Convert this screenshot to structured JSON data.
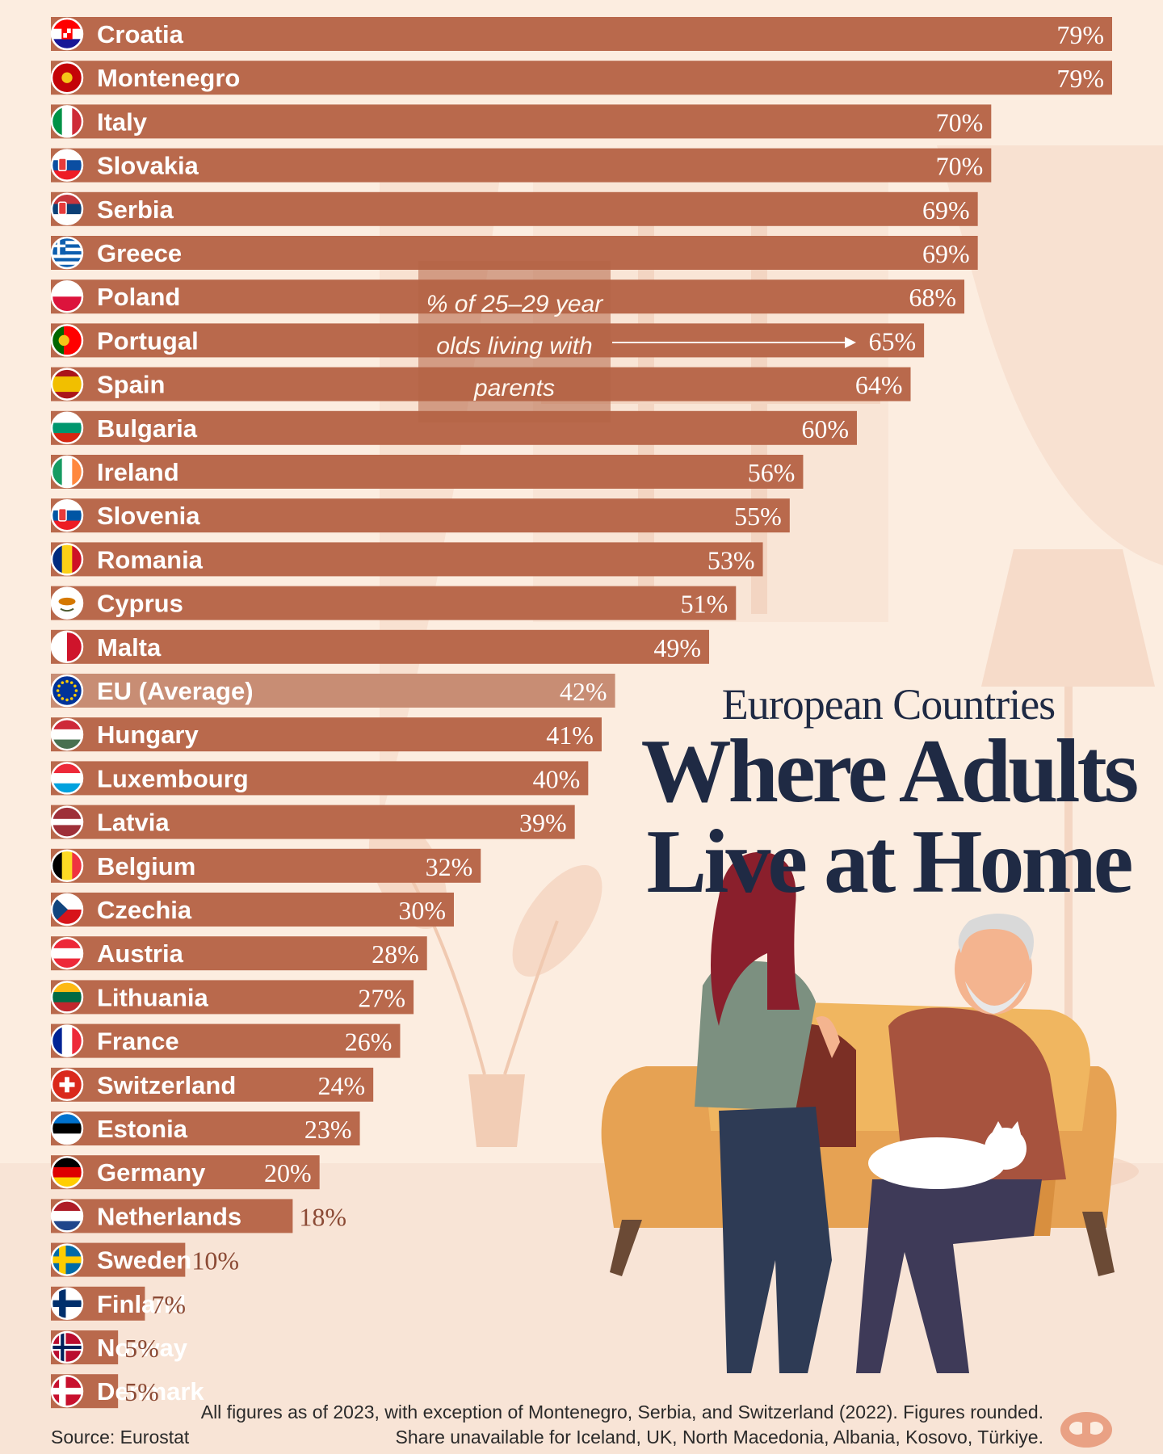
{
  "chart_data": {
    "type": "bar",
    "orientation": "horizontal",
    "title": "Where Adults Live at Home",
    "subtitle": "European Countries",
    "annotation": "% of 25–29 year olds living with parents",
    "annotation_lines": [
      "% of 25–29 year",
      "olds living with",
      "parents"
    ],
    "categories": [
      "Croatia",
      "Montenegro",
      "Italy",
      "Slovakia",
      "Serbia",
      "Greece",
      "Poland",
      "Portugal",
      "Spain",
      "Bulgaria",
      "Ireland",
      "Slovenia",
      "Romania",
      "Cyprus",
      "Malta",
      "EU (Average)",
      "Hungary",
      "Luxembourg",
      "Latvia",
      "Belgium",
      "Czechia",
      "Austria",
      "Lithuania",
      "France",
      "Switzerland",
      "Estonia",
      "Germany",
      "Netherlands",
      "Sweden",
      "Finland",
      "Norway",
      "Denmark"
    ],
    "values": [
      79,
      79,
      70,
      70,
      69,
      69,
      68,
      65,
      64,
      60,
      56,
      55,
      53,
      51,
      49,
      42,
      41,
      40,
      39,
      32,
      30,
      28,
      27,
      26,
      24,
      23,
      20,
      18,
      10,
      7,
      5,
      5
    ],
    "value_labels": [
      "79%",
      "79%",
      "70%",
      "70%",
      "69%",
      "69%",
      "68%",
      "65%",
      "64%",
      "60%",
      "56%",
      "55%",
      "53%",
      "51%",
      "49%",
      "42%",
      "41%",
      "40%",
      "39%",
      "32%",
      "30%",
      "28%",
      "27%",
      "26%",
      "24%",
      "23%",
      "20%",
      "18%",
      "10%",
      "7%",
      "5%",
      "5%"
    ],
    "highlight": "EU (Average)",
    "unit": "%",
    "xlim": [
      0,
      79
    ],
    "grid": false,
    "legend": "none"
  },
  "flags": [
    {
      "country": "Croatia",
      "type": "h",
      "colors": [
        "#ff0000",
        "#ffffff",
        "#171796"
      ],
      "emblem": "checker"
    },
    {
      "country": "Montenegro",
      "type": "solid",
      "colors": [
        "#c40308"
      ],
      "emblem": "gold-dot"
    },
    {
      "country": "Italy",
      "type": "v",
      "colors": [
        "#009246",
        "#ffffff",
        "#ce2b37"
      ]
    },
    {
      "country": "Slovakia",
      "type": "h",
      "colors": [
        "#ffffff",
        "#0b4ea2",
        "#ee1c25"
      ],
      "emblem": "shield"
    },
    {
      "country": "Serbia",
      "type": "h",
      "colors": [
        "#c6363c",
        "#0c4076",
        "#ffffff"
      ],
      "emblem": "shield"
    },
    {
      "country": "Greece",
      "type": "h",
      "colors": [
        "#0d5eaf",
        "#ffffff",
        "#0d5eaf",
        "#ffffff",
        "#0d5eaf",
        "#ffffff",
        "#0d5eaf",
        "#ffffff",
        "#0d5eaf"
      ],
      "emblem": "greek-cross"
    },
    {
      "country": "Poland",
      "type": "h",
      "colors": [
        "#ffffff",
        "#dc143c"
      ]
    },
    {
      "country": "Portugal",
      "type": "v2",
      "colors": [
        "#006600",
        "#ff0000"
      ],
      "emblem": "gold-dot"
    },
    {
      "country": "Spain",
      "type": "h",
      "colors": [
        "#aa151b",
        "#f1bf00",
        "#f1bf00",
        "#aa151b"
      ]
    },
    {
      "country": "Bulgaria",
      "type": "h",
      "colors": [
        "#ffffff",
        "#00966e",
        "#d62612"
      ]
    },
    {
      "country": "Ireland",
      "type": "v",
      "colors": [
        "#169b62",
        "#ffffff",
        "#ff883e"
      ]
    },
    {
      "country": "Slovenia",
      "type": "h",
      "colors": [
        "#ffffff",
        "#0055a4",
        "#ed1c24"
      ],
      "emblem": "shield"
    },
    {
      "country": "Romania",
      "type": "v",
      "colors": [
        "#002b7f",
        "#fcd116",
        "#ce1126"
      ]
    },
    {
      "country": "Cyprus",
      "type": "solid",
      "colors": [
        "#ffffff"
      ],
      "emblem": "cyprus"
    },
    {
      "country": "Malta",
      "type": "v",
      "colors": [
        "#ffffff",
        "#ffffff",
        "#cf142b",
        "#cf142b"
      ]
    },
    {
      "country": "EU (Average)",
      "type": "solid",
      "colors": [
        "#003399"
      ],
      "emblem": "stars"
    },
    {
      "country": "Hungary",
      "type": "h",
      "colors": [
        "#ce2939",
        "#ffffff",
        "#477050"
      ]
    },
    {
      "country": "Luxembourg",
      "type": "h",
      "colors": [
        "#ed2939",
        "#ffffff",
        "#00a1de"
      ]
    },
    {
      "country": "Latvia",
      "type": "h",
      "colors": [
        "#9e3039",
        "#9e3039",
        "#ffffff",
        "#9e3039",
        "#9e3039"
      ]
    },
    {
      "country": "Belgium",
      "type": "v",
      "colors": [
        "#000000",
        "#fdda24",
        "#ef3340"
      ]
    },
    {
      "country": "Czechia",
      "type": "h",
      "colors": [
        "#ffffff",
        "#d7141a"
      ],
      "emblem": "czech"
    },
    {
      "country": "Austria",
      "type": "h",
      "colors": [
        "#ed2939",
        "#ffffff",
        "#ed2939"
      ]
    },
    {
      "country": "Lithuania",
      "type": "h",
      "colors": [
        "#fdb913",
        "#006a44",
        "#c1272d"
      ]
    },
    {
      "country": "France",
      "type": "v",
      "colors": [
        "#002395",
        "#ffffff",
        "#ed2939"
      ]
    },
    {
      "country": "Switzerland",
      "type": "solid",
      "colors": [
        "#da291c"
      ],
      "emblem": "swiss"
    },
    {
      "country": "Estonia",
      "type": "h",
      "colors": [
        "#0072ce",
        "#000000",
        "#ffffff"
      ]
    },
    {
      "country": "Germany",
      "type": "h",
      "colors": [
        "#000000",
        "#dd0000",
        "#ffce00"
      ]
    },
    {
      "country": "Netherlands",
      "type": "h",
      "colors": [
        "#ae1c28",
        "#ffffff",
        "#21468b"
      ]
    },
    {
      "country": "Sweden",
      "type": "solid",
      "colors": [
        "#006aa7"
      ],
      "emblem": "nordic:#fecc00:"
    },
    {
      "country": "Finland",
      "type": "solid",
      "colors": [
        "#ffffff"
      ],
      "emblem": "nordic:#002f6c:"
    },
    {
      "country": "Norway",
      "type": "solid",
      "colors": [
        "#ba0c2f"
      ],
      "emblem": "nordic:#ffffff:#00205b"
    },
    {
      "country": "Denmark",
      "type": "solid",
      "colors": [
        "#c8102e"
      ],
      "emblem": "nordic:#ffffff:"
    }
  ],
  "colors": {
    "bar": "#b9694c",
    "bar_highlight": "#c88d74",
    "label_text": "#ffffff",
    "value_text_inside": "#ffffff",
    "value_text_outside": "#8b4a35",
    "title": "#1f2a44",
    "background": "#fcede0"
  },
  "footer": {
    "source": "Source: Eurostat",
    "note_lines": [
      "All figures as of 2023, with exception of Montenegro, Serbia, and Switzerland (2022). Figures rounded.",
      "Share unavailable for Iceland, UK, North Macedonia, Albania, Kosovo, Türkiye."
    ]
  }
}
